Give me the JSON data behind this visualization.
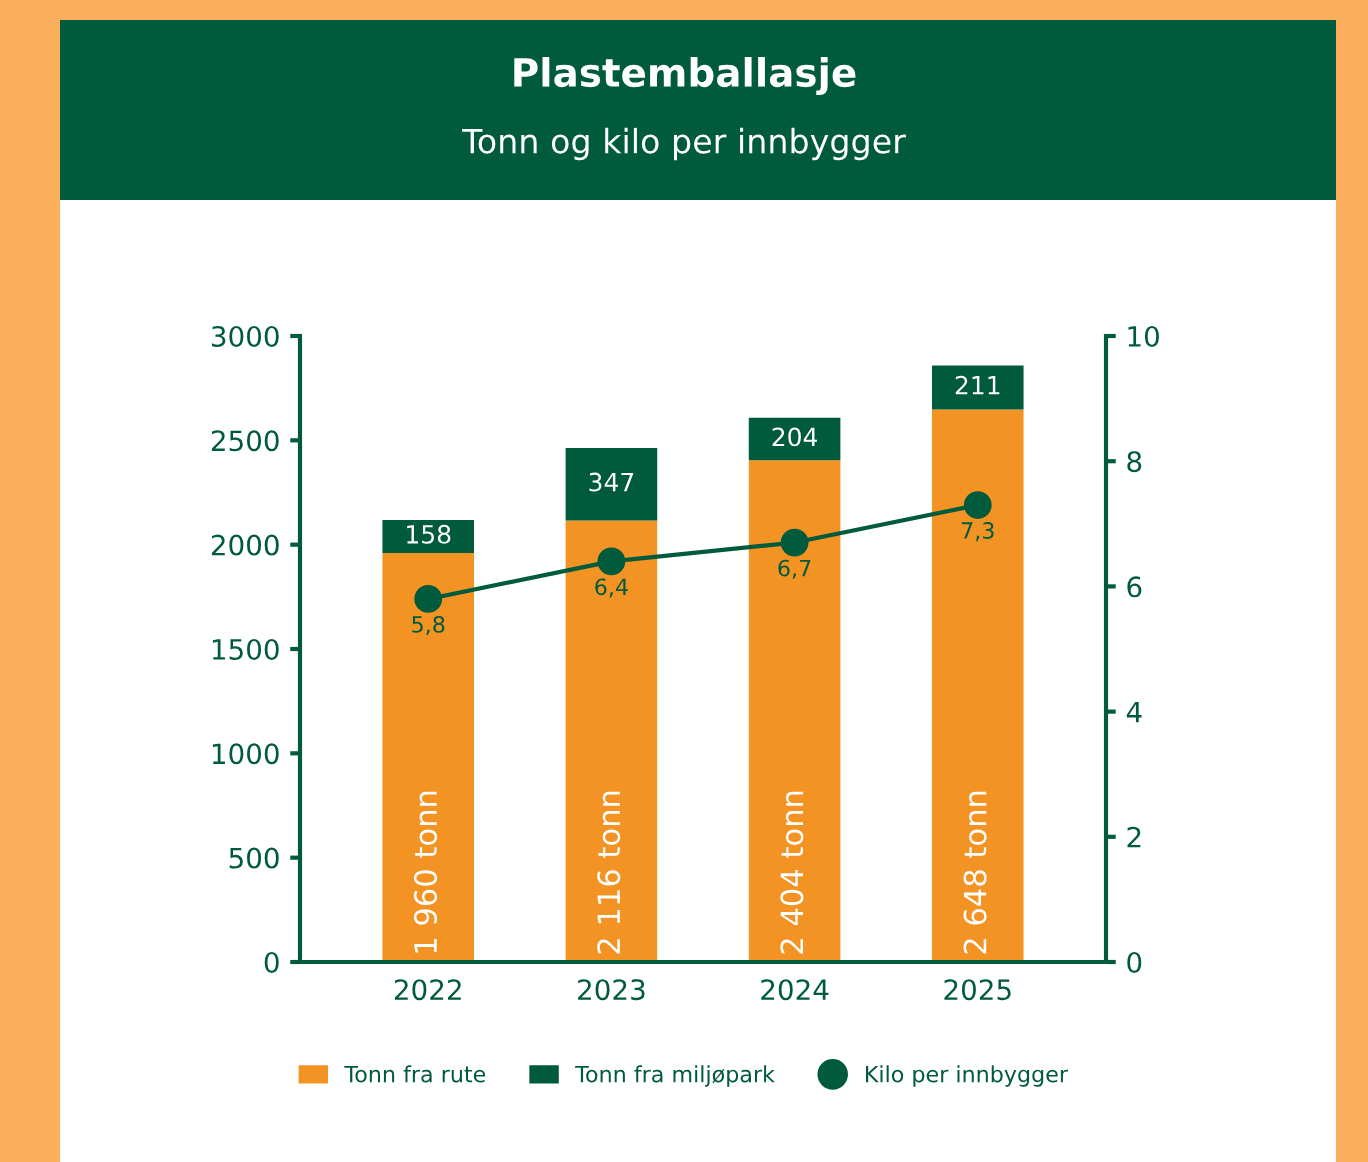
{
  "chart_data": {
    "type": "bar",
    "title": "Plastemballasje",
    "subtitle": "Tonn og kilo per innbygger",
    "categories": [
      "2022",
      "2023",
      "2024",
      "2025"
    ],
    "stacked": true,
    "series": [
      {
        "name": "Tonn fra rute",
        "color": "#f39323",
        "values": [
          1960,
          2116,
          2404,
          2648
        ],
        "value_labels": [
          "1 960 tonn",
          "2 116 tonn",
          "2 404 tonn",
          "2 648 tonn"
        ]
      },
      {
        "name": "Tonn fra miljøpark",
        "color": "#005a3c",
        "values": [
          158,
          347,
          204,
          211
        ],
        "value_labels": [
          "158",
          "347",
          "204",
          "211"
        ]
      },
      {
        "name": "Kilo per innbygger",
        "type": "line",
        "axis": "y2",
        "color": "#005a3c",
        "marker": "circle",
        "values": [
          5.8,
          6.4,
          6.7,
          7.3
        ],
        "value_labels": [
          "5,8",
          "6,4",
          "6,7",
          "7,3"
        ]
      }
    ],
    "ylim": [
      0,
      3000
    ],
    "yticks": [
      0,
      500,
      1000,
      1500,
      2000,
      2500,
      3000
    ],
    "y2lim": [
      0,
      10
    ],
    "y2ticks": [
      0,
      2,
      4,
      6,
      8,
      10
    ],
    "grid": false,
    "legend": "bottom"
  }
}
